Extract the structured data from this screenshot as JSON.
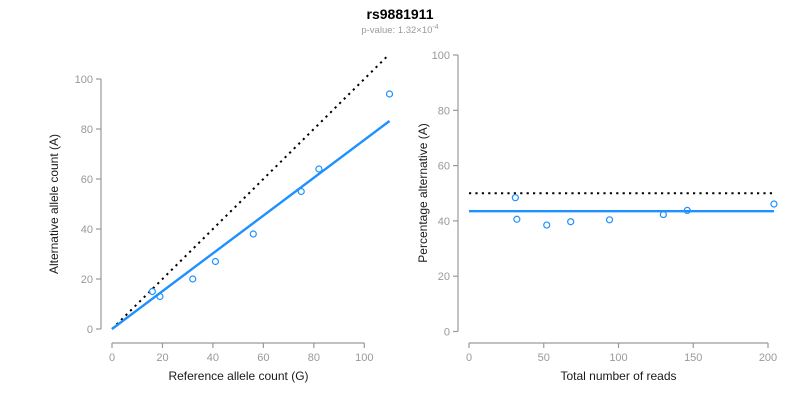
{
  "header": {
    "title": "rs9881911",
    "subtitle_text": "p-value: 1.32×10",
    "subtitle_exponent": "-4"
  },
  "colors": {
    "accent_blue": "#1E90FF",
    "dotted_black": "#000000",
    "axis": "#9a9a9a",
    "tick_label": "#999999",
    "axis_title": "#1a1a1a",
    "subtitle_gray": "#9b9b9b"
  },
  "chart_data": [
    {
      "id": "allele-count-scatter",
      "type": "scatter",
      "xlabel": "Reference allele count (G)",
      "ylabel": "Alternative allele count (A)",
      "xticks": [
        0,
        20,
        40,
        60,
        80,
        100
      ],
      "yticks": [
        0,
        20,
        40,
        60,
        80,
        100
      ],
      "xlim": [
        0,
        110
      ],
      "ylim": [
        0,
        110
      ],
      "grid": false,
      "legend": "none",
      "marker": {
        "shape": "open-circle",
        "color": "#1E90FF",
        "radius": 3
      },
      "points": [
        [
          16,
          15
        ],
        [
          19,
          13
        ],
        [
          32,
          20
        ],
        [
          41,
          27
        ],
        [
          56,
          38
        ],
        [
          75,
          55
        ],
        [
          82,
          64
        ],
        [
          110,
          94
        ]
      ],
      "lines": [
        {
          "name": "identity-line",
          "meaning": "y = x (balanced alleles)",
          "style": "dotted",
          "color": "#000000",
          "width": 2,
          "x1": 0,
          "y1": 0,
          "x2": 109.5,
          "y2": 109.5
        },
        {
          "name": "fit-line",
          "meaning": "fitted allelic ratio y = 0.756x",
          "style": "solid",
          "color": "#1E90FF",
          "width": 2.4,
          "x1": 0,
          "y1": 0,
          "x2": 110,
          "y2": 83.2
        }
      ]
    },
    {
      "id": "percentage-reads-scatter",
      "type": "scatter",
      "xlabel": "Total number of reads",
      "ylabel": "Percentage alternative (A)",
      "xticks": [
        0,
        50,
        100,
        150,
        200
      ],
      "yticks": [
        0,
        20,
        40,
        60,
        80,
        100
      ],
      "xlim": [
        0,
        204
      ],
      "ylim": [
        0,
        100
      ],
      "grid": false,
      "legend": "none",
      "marker": {
        "shape": "open-circle",
        "color": "#1E90FF",
        "radius": 3
      },
      "points": [
        [
          31,
          48.4
        ],
        [
          32,
          40.6
        ],
        [
          52,
          38.5
        ],
        [
          68,
          39.7
        ],
        [
          94,
          40.4
        ],
        [
          130,
          42.3
        ],
        [
          146,
          43.8
        ],
        [
          204,
          46.1
        ]
      ],
      "lines": [
        {
          "name": "expected-50pct-line",
          "meaning": "expected 50% under no imbalance",
          "style": "dotted",
          "color": "#000000",
          "width": 2,
          "x1": 0,
          "y1": 50,
          "x2": 204,
          "y2": 50
        },
        {
          "name": "mean-percentage-line",
          "meaning": "estimated alternative-allele percentage ≈ 43.5%",
          "style": "solid",
          "color": "#1E90FF",
          "width": 2.4,
          "x1": 0,
          "y1": 43.5,
          "x2": 204,
          "y2": 43.5
        }
      ]
    }
  ]
}
